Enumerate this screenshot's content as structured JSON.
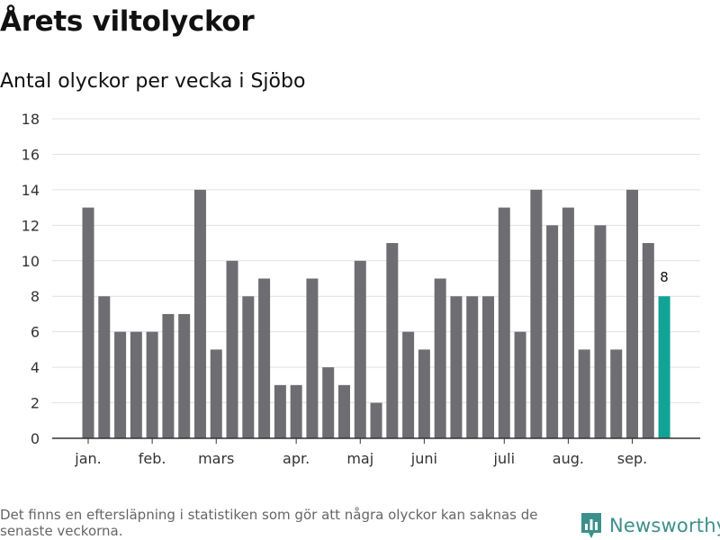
{
  "header": {
    "title": "Årets viltolyckor",
    "subtitle": "Antal olyckor per vecka i Sjöbo"
  },
  "footer": {
    "note": "Det finns en eftersläpning i statistiken som gör att några olyckor kan saknas de senaste veckorna.",
    "brand": "Newsworthy",
    "brand_icon": "newsworthy-logo-icon"
  },
  "colors": {
    "bar": "#6e6d72",
    "highlight": "#12a394",
    "grid": "#e0e0e0",
    "axis": "#333333",
    "brand": "#3d8f8c"
  },
  "chart_data": {
    "type": "bar",
    "title": "",
    "xlabel": "",
    "ylabel": "",
    "ylim": [
      0,
      18
    ],
    "yticks": [
      0,
      2,
      4,
      6,
      8,
      10,
      12,
      14,
      16,
      18
    ],
    "grid": true,
    "values": [
      13,
      8,
      6,
      6,
      6,
      7,
      7,
      14,
      5,
      10,
      8,
      9,
      3,
      3,
      9,
      4,
      3,
      10,
      2,
      11,
      6,
      5,
      9,
      8,
      8,
      8,
      13,
      6,
      14,
      12,
      13,
      5,
      12,
      5,
      14,
      11,
      8
    ],
    "highlight_index": 36,
    "highlight_label": "8",
    "month_labels": [
      {
        "label": "jan.",
        "bar_index": 0
      },
      {
        "label": "feb.",
        "bar_index": 4
      },
      {
        "label": "mars",
        "bar_index": 8
      },
      {
        "label": "apr.",
        "bar_index": 13
      },
      {
        "label": "maj",
        "bar_index": 17
      },
      {
        "label": "juni",
        "bar_index": 21
      },
      {
        "label": "juli",
        "bar_index": 26
      },
      {
        "label": "aug.",
        "bar_index": 30
      },
      {
        "label": "sep.",
        "bar_index": 34
      }
    ]
  }
}
